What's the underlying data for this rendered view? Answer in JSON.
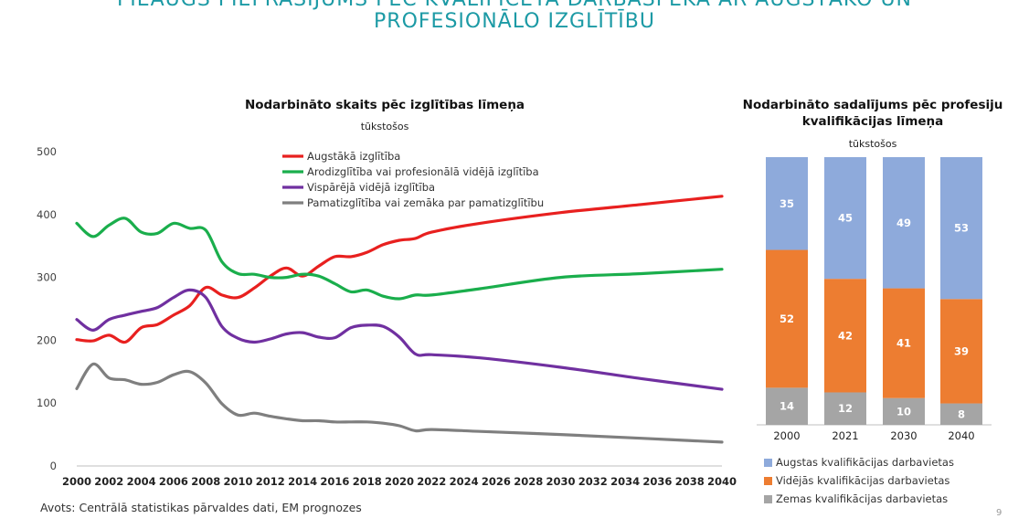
{
  "page": {
    "title": "PIEAUGS PIEPRASĪJUMS PĒC KVALIFICĒTA DARBASPĒKA AR AUGSTĀKO UN\nPROFESIONĀLO IZGLĪTĪBU",
    "source": "Avots: Centrālā statistikas pārvaldes dati, EM prognozes",
    "slide_number": "9"
  },
  "colors": {
    "title": "#1c9aa5",
    "red": "#e8201f",
    "green": "#1aae4c",
    "purple": "#7030a0",
    "gray": "#7f7f7f",
    "blue_bar": "#8eaadb",
    "orange_bar": "#ed7d31",
    "gray_bar": "#a5a5a5"
  },
  "chart_data": [
    {
      "type": "line",
      "title": "Nodarbināto skaits pēc izglītības līmeņa",
      "subtitle": "tūkstošos",
      "ylim": [
        0,
        500
      ],
      "yticks": [
        0,
        100,
        200,
        300,
        400,
        500
      ],
      "xticks": [
        2000,
        2002,
        2004,
        2006,
        2008,
        2010,
        2012,
        2014,
        2016,
        2018,
        2020,
        2022,
        2024,
        2026,
        2028,
        2030,
        2032,
        2034,
        2036,
        2038,
        2040
      ],
      "legend_position": "top-center",
      "series": [
        {
          "name": "Augstākā izglītība",
          "color": "#e8201f",
          "x": [
            2000,
            2001,
            2002,
            2003,
            2004,
            2005,
            2006,
            2007,
            2008,
            2009,
            2010,
            2011,
            2012,
            2013,
            2014,
            2015,
            2016,
            2017,
            2018,
            2019,
            2020,
            2021,
            2022,
            2025,
            2030,
            2035,
            2040
          ],
          "y": [
            201,
            199,
            208,
            197,
            220,
            225,
            240,
            255,
            284,
            272,
            268,
            283,
            302,
            315,
            302,
            318,
            333,
            333,
            340,
            352,
            359,
            362,
            372,
            386,
            403,
            416,
            429
          ]
        },
        {
          "name": "Arodizglītība vai profesionālā vidējā izglītība",
          "color": "#1aae4c",
          "x": [
            2000,
            2001,
            2002,
            2003,
            2004,
            2005,
            2006,
            2007,
            2008,
            2009,
            2010,
            2011,
            2012,
            2013,
            2014,
            2015,
            2016,
            2017,
            2018,
            2019,
            2020,
            2021,
            2022,
            2025,
            2030,
            2035,
            2040
          ],
          "y": [
            386,
            365,
            383,
            394,
            372,
            370,
            386,
            378,
            375,
            325,
            306,
            305,
            300,
            300,
            305,
            302,
            290,
            277,
            280,
            270,
            266,
            272,
            272,
            282,
            300,
            306,
            313
          ]
        },
        {
          "name": "Vispārējā vidējā izglītība",
          "color": "#7030a0",
          "x": [
            2000,
            2001,
            2002,
            2003,
            2004,
            2005,
            2006,
            2007,
            2008,
            2009,
            2010,
            2011,
            2012,
            2013,
            2014,
            2015,
            2016,
            2017,
            2018,
            2019,
            2020,
            2021,
            2022,
            2025,
            2030,
            2035,
            2040
          ],
          "y": [
            233,
            216,
            233,
            240,
            246,
            252,
            268,
            280,
            268,
            222,
            203,
            197,
            202,
            210,
            212,
            205,
            204,
            220,
            224,
            222,
            205,
            178,
            177,
            172,
            157,
            139,
            122
          ]
        },
        {
          "name": "Pamatizglītība vai zemāka par pamatizglītību",
          "color": "#7f7f7f",
          "x": [
            2000,
            2001,
            2002,
            2003,
            2004,
            2005,
            2006,
            2007,
            2008,
            2009,
            2010,
            2011,
            2012,
            2013,
            2014,
            2015,
            2016,
            2017,
            2018,
            2019,
            2020,
            2021,
            2022,
            2025,
            2030,
            2035,
            2040
          ],
          "y": [
            123,
            162,
            140,
            137,
            130,
            133,
            145,
            150,
            132,
            99,
            81,
            84,
            79,
            75,
            72,
            72,
            70,
            70,
            70,
            68,
            64,
            56,
            58,
            55,
            50,
            44,
            38
          ]
        }
      ]
    },
    {
      "type": "bar",
      "stacked": true,
      "title": "Nodarbināto sadalījums pēc profesiju kvalifikācijas līmeņa",
      "subtitle": "tūkstošos",
      "categories": [
        "2000",
        "2021",
        "2030",
        "2040"
      ],
      "legend_position": "bottom",
      "series": [
        {
          "name": "Zemas kvalifikācijas darbavietas",
          "color": "#a5a5a5",
          "values": [
            14,
            12,
            10,
            8
          ]
        },
        {
          "name": "Vidējās kvalifikācijas darbavietas",
          "color": "#ed7d31",
          "values": [
            52,
            42,
            41,
            39
          ]
        },
        {
          "name": "Augstas kvalifikācijas darbavietas",
          "color": "#8eaadb",
          "values": [
            35,
            45,
            49,
            53
          ]
        }
      ],
      "legend_order": [
        "Augstas kvalifikācijas darbavietas",
        "Vidējās kvalifikācijas darbavietas",
        "Zemas kvalifikācijas darbavietas"
      ]
    }
  ]
}
